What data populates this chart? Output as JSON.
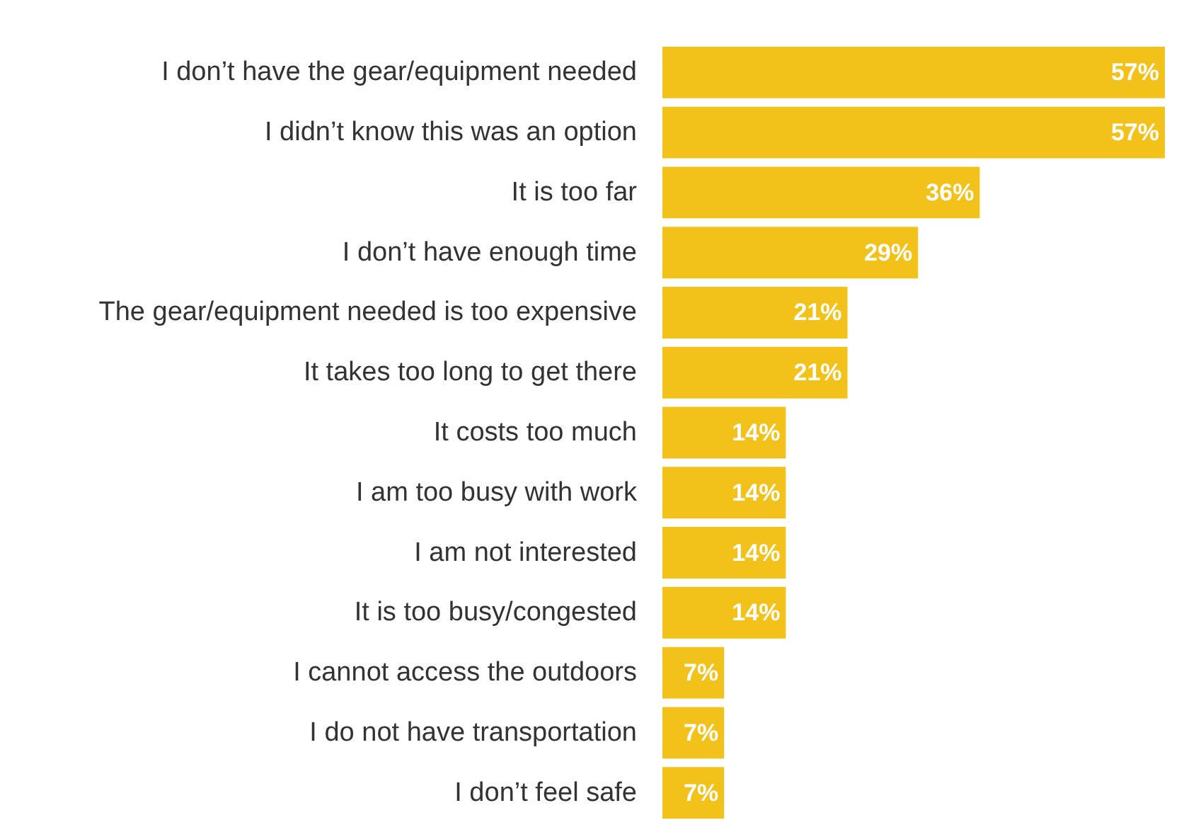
{
  "chart_data": {
    "type": "bar",
    "orientation": "horizontal",
    "relative": false,
    "categories": [
      "I don’t have the gear/equipment needed",
      "I didn’t know this was an option",
      "It is too far",
      "I don’t have enough time",
      "The gear/equipment needed is too expensive",
      "It takes too long to get there",
      "It costs too much",
      "I am too busy with work",
      "I am not interested",
      "It is too busy/congested",
      "I cannot access the outdoors",
      "I do not have transportation",
      "I don’t feel safe"
    ],
    "values": [
      57,
      57,
      36,
      29,
      21,
      21,
      14,
      14,
      14,
      14,
      7,
      7,
      7
    ],
    "value_labels": [
      "57%",
      "57%",
      "36%",
      "29%",
      "21%",
      "21%",
      "14%",
      "14%",
      "14%",
      "14%",
      "7%",
      "7%",
      "7%"
    ],
    "color": "#f2c21b"
  }
}
